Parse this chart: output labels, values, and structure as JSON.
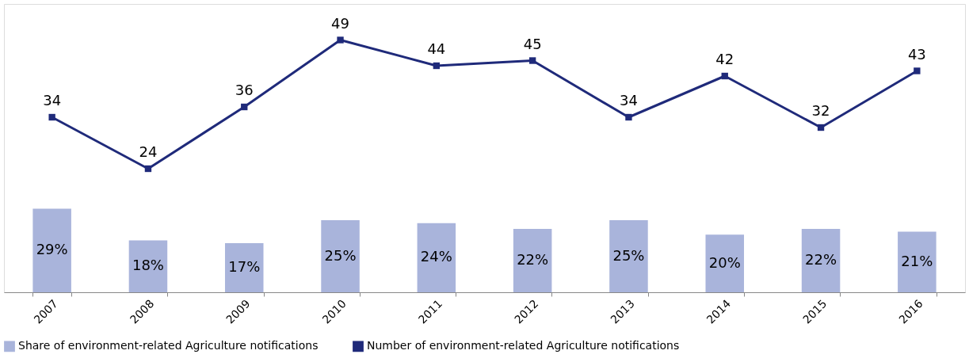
{
  "chart_data": {
    "type": "bar",
    "categories": [
      "2007",
      "2008",
      "2009",
      "2010",
      "2011",
      "2012",
      "2013",
      "2014",
      "2015",
      "2016"
    ],
    "series": [
      {
        "name": "Share of environment-related Agriculture notifications",
        "color": "#a9b4db",
        "values": [
          29,
          18,
          17,
          25,
          24,
          22,
          25,
          20,
          22,
          21
        ],
        "value_labels": [
          "29%",
          "18%",
          "17%",
          "25%",
          "24%",
          "22%",
          "25%",
          "20%",
          "22%",
          "21%"
        ]
      },
      {
        "name": "Number of environment-related Agriculture notifications",
        "type": "line",
        "axis": "y2",
        "color": "#1f2a7a",
        "values": [
          34,
          24,
          36,
          49,
          44,
          45,
          34,
          42,
          32,
          43
        ],
        "value_labels": [
          "34",
          "24",
          "36",
          "49",
          "44",
          "45",
          "34",
          "42",
          "32",
          "43"
        ]
      }
    ],
    "ylim": [
      0,
      100
    ],
    "y2lim": [
      0,
      56
    ],
    "tick_labels": "x",
    "grid": false,
    "legend": "bottom",
    "marker": "square",
    "line_style": "solid"
  }
}
